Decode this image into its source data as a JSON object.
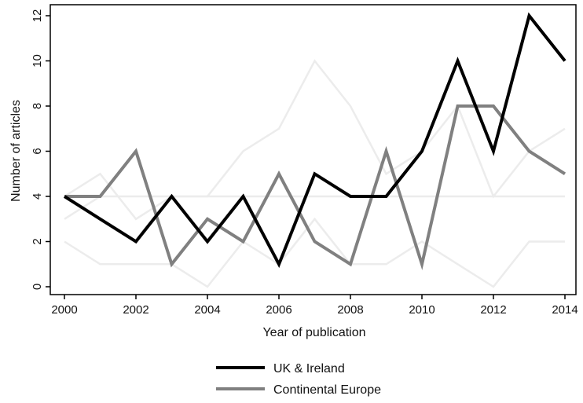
{
  "chart_data": {
    "type": "line",
    "xlabel": "Year of publication",
    "ylabel": "Number of articles",
    "xlim": [
      2000,
      2014
    ],
    "ylim": [
      0,
      12
    ],
    "x_ticks": [
      2000,
      2002,
      2004,
      2006,
      2008,
      2010,
      2012,
      2014
    ],
    "y_ticks": [
      0,
      2,
      4,
      6,
      8,
      10,
      12
    ],
    "x": [
      2000,
      2001,
      2002,
      2003,
      2004,
      2005,
      2006,
      2007,
      2008,
      2009,
      2010,
      2011,
      2012,
      2013,
      2014
    ],
    "series": [
      {
        "name": "UK & Ireland",
        "color": "#000000",
        "values": [
          4,
          3,
          2,
          4,
          2,
          4,
          1,
          5,
          4,
          4,
          6,
          10,
          6,
          12,
          10
        ]
      },
      {
        "name": "Continental Europe",
        "color": "#808080",
        "values": [
          4,
          4,
          6,
          1,
          3,
          2,
          5,
          2,
          1,
          6,
          1,
          8,
          8,
          6,
          5
        ]
      },
      {
        "name": "",
        "color": "#ececec",
        "values": [
          4,
          5,
          3,
          4,
          4,
          6,
          7,
          10,
          8,
          5,
          6,
          8,
          4,
          6,
          7
        ]
      },
      {
        "name": "",
        "color": "#ececec",
        "values": [
          3,
          4,
          4,
          4,
          4,
          4,
          4,
          4,
          4,
          4,
          4,
          4,
          4,
          4,
          4
        ]
      },
      {
        "name": "",
        "color": "#ececec",
        "values": [
          2,
          1,
          1,
          1,
          0,
          2,
          1,
          3,
          1,
          1,
          2,
          1,
          0,
          2,
          2
        ]
      }
    ],
    "legend": [
      "UK & Ireland",
      "Continental Europe"
    ],
    "legend_position": "bottom",
    "grid": false
  }
}
